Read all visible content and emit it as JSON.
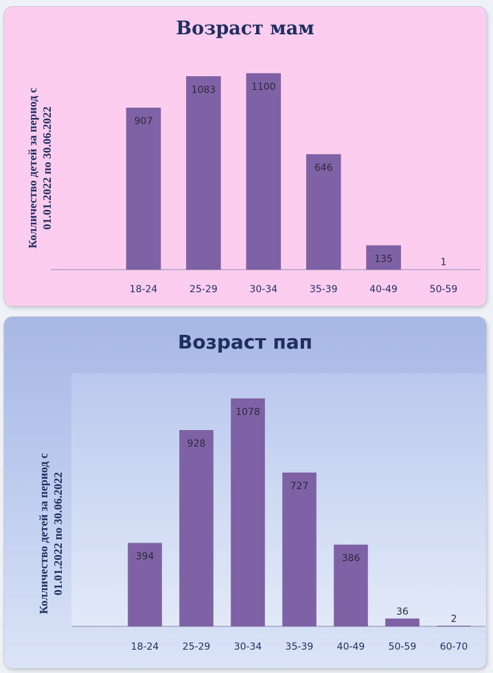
{
  "chart_data": [
    {
      "type": "bar",
      "title": "Возраст мам",
      "ylabel": "Колличество детей за период с 01.01.2022 по 30.06.2022",
      "ylabel_lines": [
        "Колличество детей за период с",
        "01.01.2022 по 30.06.2022"
      ],
      "categories": [
        "18-24",
        "25-29",
        "30-34",
        "35-39",
        "40-49",
        "50-59"
      ],
      "values": [
        907,
        1083,
        1100,
        646,
        135,
        1
      ],
      "ylim": [
        0,
        1100
      ],
      "grid": false,
      "bar_color": "#7f62a5"
    },
    {
      "type": "bar",
      "title": "Возраст пап",
      "ylabel": "Колличество детей за период с 01.01.2022 по 30.06.2022",
      "ylabel_lines": [
        "Колличество детей за период с",
        "01.01.2022 по 30.06.2022"
      ],
      "categories": [
        "18-24",
        "25-29",
        "30-34",
        "35-39",
        "40-49",
        "50-59",
        "60-70"
      ],
      "values": [
        394,
        928,
        1078,
        727,
        386,
        36,
        2
      ],
      "ylim": [
        0,
        1078
      ],
      "grid": false,
      "bar_color": "#7f62a5"
    }
  ],
  "colors": {
    "mom_panel_background": "#fdcdf0",
    "dad_panel_background": "#a7b8e4",
    "title_color": "#1f2f5f"
  }
}
